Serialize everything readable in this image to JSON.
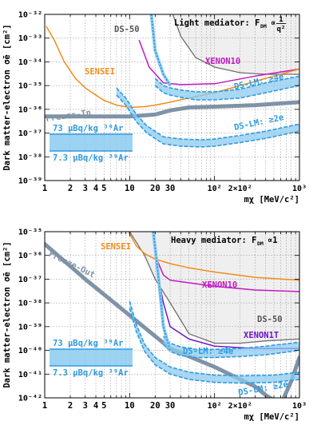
{
  "chart_data": [
    {
      "type": "line",
      "panel": "top",
      "ylabel": "Dark matter-electron σ̄e [cm²]",
      "xlabel": "mχ [MeV/c²]",
      "x_scale": "log",
      "y_scale": "log",
      "xlim": [
        1,
        1000
      ],
      "ylim": [
        1e-39,
        1e-32
      ],
      "x_ticks": [
        "1",
        "2",
        "3",
        "4",
        "5",
        "10",
        "20",
        "30",
        "10²",
        "2×10²",
        "10³"
      ],
      "y_ticks": [
        "10⁻³⁹",
        "10⁻³⁸",
        "10⁻³⁷",
        "10⁻³⁶",
        "10⁻³⁵",
        "10⁻³⁴",
        "10⁻³³",
        "10⁻³²"
      ],
      "grid": true,
      "title_text": "Light mediator: F",
      "title_sub": "DM",
      "title_tail": "∝",
      "title_frac_num": "1",
      "title_frac_den": "q²",
      "series": [
        {
          "name": "DS-50",
          "color": "#6e6e6e",
          "style": "solid",
          "width": 1.3,
          "fill": "#efefef",
          "x": [
            30,
            40,
            60,
            100,
            200,
            400,
            1000
          ],
          "y": [
            2e-32,
            1.2e-33,
            1.5e-34,
            6e-35,
            3.5e-35,
            3e-35,
            3e-35
          ]
        },
        {
          "name": "XENON10",
          "color": "#c418c4",
          "style": "solid",
          "width": 1.5,
          "x": [
            13,
            17,
            25,
            40,
            100,
            300,
            1000
          ],
          "y": [
            8e-34,
            6e-35,
            1.3e-35,
            1.1e-35,
            1.2e-35,
            2.5e-35,
            5e-35
          ]
        },
        {
          "name": "SENSEI",
          "color": "#f28c1c",
          "style": "solid",
          "width": 1.5,
          "x": [
            1.05,
            1.3,
            1.7,
            2.3,
            3,
            4,
            5,
            7,
            10,
            15,
            20,
            30,
            50,
            100,
            300,
            1000
          ],
          "y": [
            3e-33,
            8e-34,
            1e-34,
            2e-35,
            8e-36,
            4e-36,
            2.4e-36,
            1.5e-36,
            1.2e-36,
            1.3e-36,
            1.5e-36,
            2e-36,
            3e-36,
            5e-36,
            1.5e-35,
            5e-35
          ]
        },
        {
          "name": "Freeze-In",
          "color": "#7f93a7",
          "style": "solid",
          "width": 5,
          "x": [
            1,
            3,
            10,
            20,
            30,
            50,
            100,
            300,
            1000
          ],
          "y": [
            5e-37,
            5e-37,
            5e-37,
            6e-37,
            9e-37,
            1.2e-36,
            1.3e-36,
            1.5e-36,
            2e-36
          ]
        },
        {
          "name": "DS-LM: ≥4e",
          "color": "#2e9be0",
          "style": "band",
          "x": [
            20,
            25,
            30,
            40,
            60,
            100,
            200,
            400,
            1000
          ],
          "y_low": [
            1e-35,
            5e-36,
            4e-36,
            3.2e-36,
            2.5e-36,
            2.5e-36,
            3e-36,
            5e-36,
            1e-35
          ],
          "y_high": [
            2e-35,
            1e-35,
            8e-36,
            6.5e-36,
            5.5e-36,
            5.5e-36,
            7e-36,
            1.3e-35,
            2.5e-35
          ]
        },
        {
          "name": "DS-LM: ≥4e (steep)",
          "color": "#2e9be0",
          "style": "dashed",
          "x": [
            18,
            20,
            25,
            30
          ],
          "y": [
            1e-32,
            3e-34,
            3e-35,
            1e-35
          ]
        },
        {
          "name": "DS-LM: ≥2e",
          "color": "#2e9be0",
          "style": "band",
          "x": [
            7,
            9,
            12,
            16,
            25,
            40,
            70,
            100,
            200,
            400,
            1000
          ],
          "y_low": [
            4e-36,
            1.5e-36,
            3e-37,
            1e-37,
            3.5e-38,
            2.8e-38,
            2.6e-38,
            2.8e-38,
            4e-38,
            6e-38,
            1.2e-37
          ],
          "y_high": [
            8e-36,
            3e-36,
            6e-37,
            2e-37,
            7e-38,
            5.6e-38,
            5.2e-38,
            5.6e-38,
            8e-38,
            1.2e-37,
            2.4e-37
          ]
        }
      ],
      "labels": {
        "ds50": "DS-50",
        "xenon10": "XENON10",
        "sensei": "SENSEI",
        "freeze": "Freeze-In",
        "lm4": "DS-LM: ≥4e",
        "lm2": "DS-LM: ≥2e"
      },
      "legend": {
        "upper": "73 μBq/kg ³⁹Ar",
        "lower": "7.3 μBq/kg ³⁹Ar"
      }
    },
    {
      "type": "line",
      "panel": "bottom",
      "ylabel": "Dark matter-electron σ̄e [cm²]",
      "xlabel": "mχ [MeV/c²]",
      "x_scale": "log",
      "y_scale": "log",
      "xlim": [
        1,
        1000
      ],
      "ylim": [
        1e-42,
        1e-35
      ],
      "x_ticks": [
        "1",
        "2",
        "3",
        "4",
        "5",
        "10",
        "20",
        "30",
        "10²",
        "2×10²",
        "10³"
      ],
      "y_ticks": [
        "10⁻⁴²",
        "10⁻⁴¹",
        "10⁻⁴⁰",
        "10⁻³⁹",
        "10⁻³⁸",
        "10⁻³⁷",
        "10⁻³⁶",
        "10⁻³⁵"
      ],
      "grid": true,
      "title_text": "Heavy mediator: F",
      "title_sub": "DM",
      "title_tail": "∝1",
      "series": [
        {
          "name": "DS-50",
          "color": "#6e6e6e",
          "style": "solid",
          "width": 1.3,
          "fill": "#efefef",
          "x": [
            10,
            15,
            20,
            30,
            50,
            100,
            200,
            400,
            1000
          ],
          "y": [
            1e-35,
            1e-36,
            1e-37,
            1e-38,
            5e-40,
            2e-40,
            2e-40,
            2.5e-40,
            3e-40
          ]
        },
        {
          "name": "XENON10",
          "color": "#c418c4",
          "style": "solid",
          "width": 1.5,
          "x": [
            20,
            25,
            30,
            50,
            100,
            300,
            1000
          ],
          "y": [
            1e-36,
            1.5e-37,
            9e-38,
            7e-38,
            5e-38,
            3.5e-38,
            3e-38
          ]
        },
        {
          "name": "XENON1T",
          "color": "#6a16c8",
          "style": "solid",
          "width": 1.5,
          "x": [
            20,
            22,
            25,
            30,
            50,
            100,
            300,
            1000
          ],
          "y": [
            1e-36,
            1e-37,
            1e-38,
            1e-39,
            3e-40,
            1.5e-40,
            1.2e-40,
            1.2e-40
          ]
        },
        {
          "name": "SENSEI",
          "color": "#f28c1c",
          "style": "solid",
          "width": 1.5,
          "x": [
            9,
            10,
            12,
            15,
            20,
            30,
            50,
            100,
            300,
            1000
          ],
          "y": [
            3e-35,
            8e-36,
            2.5e-36,
            1.2e-36,
            7e-37,
            4.5e-37,
            3e-37,
            2e-37,
            1.2e-37,
            9e-38
          ]
        },
        {
          "name": "Freeze-Out",
          "color": "#7f93a7",
          "style": "solid",
          "width": 5,
          "x": [
            1,
            3,
            10,
            30,
            100,
            200,
            300,
            400,
            500,
            600,
            800,
            1000
          ],
          "y": [
            3e-36,
            1e-37,
            3e-39,
            1.2e-40,
            2e-41,
            6e-42,
            3e-42,
            1.3e-42,
            8e-43,
            5e-43,
            5e-42,
            5e-41
          ]
        },
        {
          "name": "DS-LM: ≥4e",
          "color": "#2e9be0",
          "style": "band",
          "x": [
            25,
            30,
            40,
            60,
            100,
            200,
            400,
            1000
          ],
          "y_low": [
            1.8e-40,
            9e-41,
            6e-41,
            5e-41,
            5e-41,
            5.5e-41,
            6.5e-41,
            1e-40
          ],
          "y_high": [
            4e-40,
            2e-40,
            1.4e-40,
            1.1e-40,
            1.1e-40,
            1.2e-40,
            1.5e-40,
            2.2e-40
          ]
        },
        {
          "name": "DS-LM: ≥4e (steep)",
          "color": "#2e9be0",
          "style": "dashed",
          "x": [
            19,
            22,
            25,
            30
          ],
          "y": [
            1e-35,
            1e-37,
            1e-39,
            1e-40
          ]
        },
        {
          "name": "DS-LM: ≥2e",
          "color": "#2e9be0",
          "style": "band",
          "x": [
            10,
            12,
            15,
            20,
            30,
            50,
            100,
            200,
            500,
            1000
          ],
          "y_low": [
            6e-39,
            6e-40,
            9e-41,
            2.5e-41,
            1e-41,
            6e-42,
            4.5e-42,
            4.2e-42,
            4.5e-42,
            6e-42
          ],
          "y_high": [
            1.2e-38,
            1.2e-39,
            1.8e-40,
            5e-41,
            2e-41,
            1.2e-41,
            9e-42,
            8.5e-42,
            9e-42,
            1.2e-41
          ]
        }
      ],
      "labels": {
        "ds50": "DS-50",
        "xenon10": "XENON10",
        "xenon1t": "XENON1T",
        "sensei": "SENSEI",
        "freeze": "Freeze-Out",
        "lm4": "DS-LM: ≥4e",
        "lm2": "DS-LM: ≥2e"
      },
      "legend": {
        "upper": "73 μBq/kg ³⁹Ar",
        "lower": "7.3 μBq/kg ³⁹Ar"
      }
    }
  ]
}
